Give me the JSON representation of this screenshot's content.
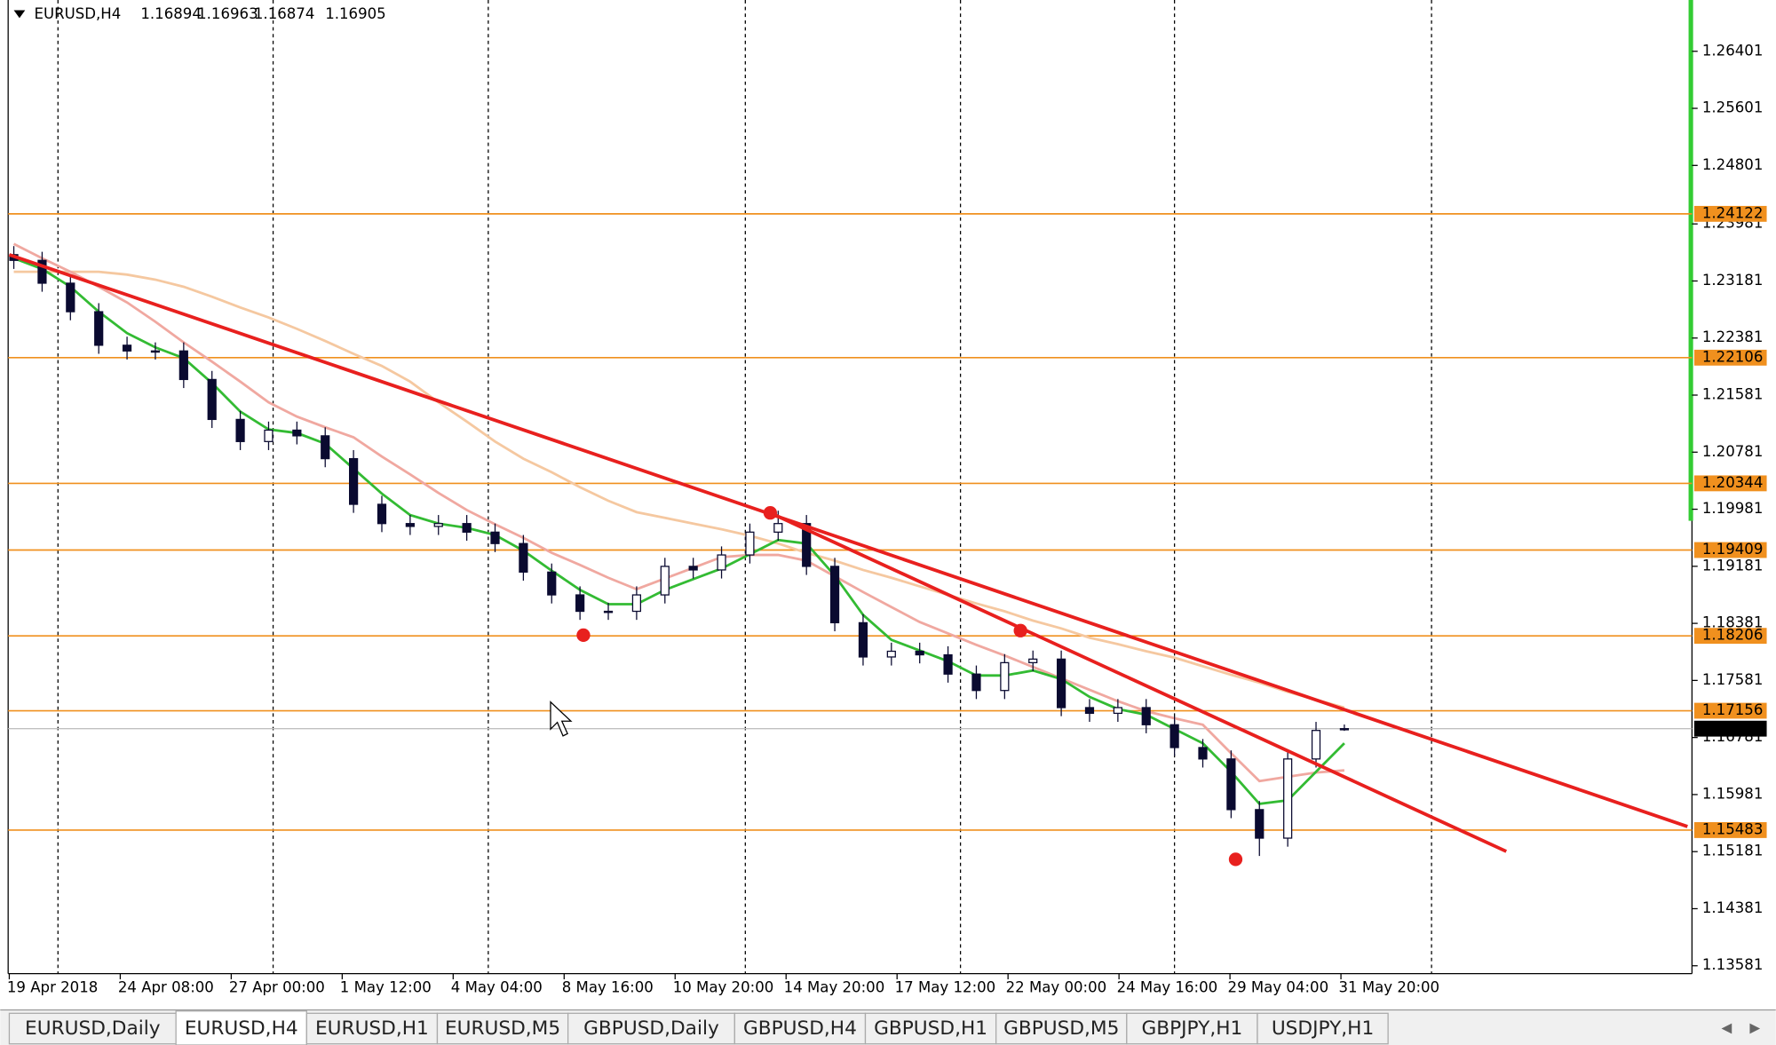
{
  "chart_data": {
    "type": "candlestick",
    "symbol": "EURUSD,H4",
    "ylim": [
      1.1347,
      1.2712
    ],
    "yticks": [
      1.26401,
      1.25601,
      1.24801,
      1.23981,
      1.23181,
      1.22381,
      1.21581,
      1.20781,
      1.19981,
      1.19181,
      1.18381,
      1.17581,
      1.16781,
      1.15981,
      1.15181,
      1.14381,
      1.13581
    ],
    "time_labels": [
      "19 Apr 2018",
      "24 Apr 08:00",
      "27 Apr 00:00",
      "1 May 12:00",
      "4 May 04:00",
      "8 May 16:00",
      "10 May 20:00",
      "14 May 20:00",
      "17 May 12:00",
      "22 May 00:00",
      "24 May 16:00",
      "29 May 04:00",
      "31 May 20:00"
    ],
    "open": [
      1.2355,
      1.2347,
      1.2315,
      1.2275,
      1.2228,
      1.222,
      1.222,
      1.218,
      1.2124,
      1.2093,
      1.2109,
      1.2101,
      1.2069,
      1.2005,
      1.1978,
      1.1974,
      1.1978,
      1.1966,
      1.195,
      1.191,
      1.1878,
      1.1855,
      1.1855,
      1.1878,
      1.1918,
      1.1913,
      1.1934,
      1.1966,
      1.1978,
      1.1918,
      1.1839,
      1.1791,
      1.1799,
      1.1794,
      1.1767,
      1.1744,
      1.1783,
      1.1788,
      1.172,
      1.1712,
      1.172,
      1.1696,
      1.1664,
      1.1648,
      1.1577,
      1.1537,
      1.1648,
      1.16894
    ],
    "high": [
      1.2367,
      1.2359,
      1.2327,
      1.2287,
      1.224,
      1.2232,
      1.2232,
      1.2192,
      1.2136,
      1.2121,
      1.2121,
      1.2113,
      1.2081,
      1.2017,
      1.199,
      1.199,
      1.199,
      1.1978,
      1.1962,
      1.1922,
      1.189,
      1.1867,
      1.189,
      1.193,
      1.193,
      1.1946,
      1.1978,
      1.1996,
      1.199,
      1.193,
      1.1851,
      1.1811,
      1.1811,
      1.1806,
      1.1779,
      1.1795,
      1.18,
      1.18,
      1.1732,
      1.1732,
      1.1732,
      1.1708,
      1.1676,
      1.166,
      1.1589,
      1.166,
      1.17,
      1.16963
    ],
    "low": [
      1.2335,
      1.2303,
      1.2263,
      1.2216,
      1.2208,
      1.2208,
      1.2168,
      1.2112,
      1.2081,
      1.2081,
      1.2089,
      1.2057,
      1.1993,
      1.1966,
      1.1962,
      1.1962,
      1.1954,
      1.1938,
      1.1898,
      1.1866,
      1.1843,
      1.1843,
      1.1843,
      1.1866,
      1.1901,
      1.1901,
      1.1922,
      1.1954,
      1.1906,
      1.1827,
      1.1779,
      1.1779,
      1.1782,
      1.1755,
      1.1732,
      1.1732,
      1.1771,
      1.1708,
      1.17,
      1.17,
      1.1684,
      1.1652,
      1.1636,
      1.1565,
      1.1512,
      1.1525,
      1.1636,
      1.16874
    ],
    "close": [
      1.2347,
      1.2315,
      1.2275,
      1.2228,
      1.222,
      1.222,
      1.218,
      1.2124,
      1.2093,
      1.2109,
      1.2101,
      1.2069,
      1.2005,
      1.1978,
      1.1974,
      1.1978,
      1.1966,
      1.195,
      1.191,
      1.1878,
      1.1855,
      1.1855,
      1.1878,
      1.1918,
      1.1913,
      1.1934,
      1.1966,
      1.1978,
      1.1918,
      1.1839,
      1.1791,
      1.1799,
      1.1794,
      1.1767,
      1.1744,
      1.1783,
      1.1788,
      1.172,
      1.1712,
      1.172,
      1.1696,
      1.1664,
      1.1648,
      1.1577,
      1.1537,
      1.1648,
      1.1688,
      1.16905
    ],
    "moving_averages": [
      {
        "color": "#f5c8a0",
        "values": [
          1.2331,
          1.2331,
          1.2331,
          1.2331,
          1.2327,
          1.232,
          1.231,
          1.2296,
          1.2281,
          1.2267,
          1.2251,
          1.2234,
          1.2216,
          1.2199,
          1.2177,
          1.2148,
          1.2121,
          1.2093,
          1.2069,
          1.205,
          1.2029,
          1.201,
          1.1994,
          1.1986,
          1.1978,
          1.197,
          1.1961,
          1.195,
          1.1937,
          1.1926,
          1.1913,
          1.1902,
          1.189,
          1.1878,
          1.1866,
          1.1855,
          1.1842,
          1.1831,
          1.1818,
          1.1809,
          1.1799,
          1.179,
          1.1778,
          1.1766,
          1.1755,
          1.1742,
          1.1731,
          1.172
        ]
      },
      {
        "color": "#f0a8a0",
        "values": [
          1.237,
          1.235,
          1.2331,
          1.231,
          1.2288,
          1.2261,
          1.2232,
          1.2205,
          1.2177,
          1.2148,
          1.2128,
          1.2113,
          1.2099,
          1.2072,
          1.2047,
          1.2021,
          1.1997,
          1.1977,
          1.1958,
          1.1937,
          1.192,
          1.1902,
          1.1886,
          1.1901,
          1.1916,
          1.1931,
          1.1934,
          1.1934,
          1.1926,
          1.1904,
          1.1882,
          1.1861,
          1.184,
          1.1824,
          1.1808,
          1.1793,
          1.1777,
          1.1761,
          1.1745,
          1.1729,
          1.1715,
          1.1705,
          1.1696,
          1.1656,
          1.1617,
          1.1623,
          1.1629,
          1.1632
        ]
      },
      {
        "color": "#33bb33",
        "values": [
          1.235,
          1.2335,
          1.231,
          1.2275,
          1.2245,
          1.2225,
          1.221,
          1.2175,
          1.2135,
          1.211,
          1.2105,
          1.209,
          1.2055,
          1.202,
          1.199,
          1.1978,
          1.1972,
          1.1962,
          1.194,
          1.1912,
          1.1885,
          1.1865,
          1.1865,
          1.1885,
          1.19,
          1.1915,
          1.1935,
          1.1955,
          1.195,
          1.1905,
          1.185,
          1.1815,
          1.18,
          1.1785,
          1.1765,
          1.1765,
          1.1772,
          1.176,
          1.1735,
          1.1718,
          1.171,
          1.169,
          1.167,
          1.163,
          1.1585,
          1.159,
          1.163,
          1.167
        ]
      }
    ],
    "levels": [
      1.24122,
      1.22106,
      1.20344,
      1.19409,
      1.18206,
      1.17156,
      1.15483
    ],
    "level_color": "#f0901e",
    "current_price": 1.16905,
    "grid": false
  },
  "tabs": [
    "EURUSD,Daily",
    "EURUSD,H4",
    "EURUSD,H1",
    "EURUSD,M5",
    "GBPUSD,Daily",
    "GBPUSD,H4",
    "GBPUSD,H1",
    "GBPUSD,M5",
    "GBPJPY,H1",
    "USDJPY,H1"
  ],
  "active_tab": 1
}
